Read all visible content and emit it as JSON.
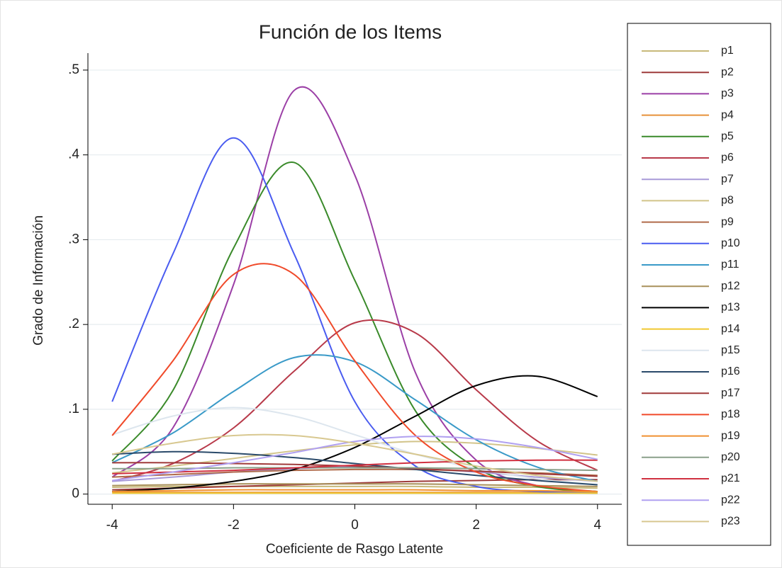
{
  "chart_data": {
    "type": "line",
    "title": "Función de los Items",
    "x_label": "Coeficiente de Rasgo Latente",
    "y_label": "Grado de Información",
    "x": [
      -4,
      -3,
      -2,
      -1,
      0,
      1,
      2,
      3,
      4
    ],
    "xlim": [
      -4.4,
      4.4
    ],
    "ylim": [
      -0.012,
      0.52
    ],
    "xticks": [
      -4,
      -2,
      0,
      2,
      4
    ],
    "yticks": [
      0,
      {
        "value": 0.1,
        "label": ".1"
      },
      {
        "value": 0.2,
        "label": ".2"
      },
      {
        "value": 0.3,
        "label": ".3"
      },
      {
        "value": 0.4,
        "label": ".4"
      },
      {
        "value": 0.5,
        "label": ".5"
      }
    ],
    "grid": true,
    "legend": "right",
    "series": [
      {
        "name": "p1",
        "color": "#c8b97a",
        "values": [
          0.008,
          0.009,
          0.009,
          0.009,
          0.009,
          0.009,
          0.008,
          0.008,
          0.007
        ]
      },
      {
        "name": "p2",
        "color": "#9e3a3a",
        "values": [
          0.005,
          0.007,
          0.009,
          0.011,
          0.013,
          0.015,
          0.016,
          0.017,
          0.017
        ]
      },
      {
        "name": "p3",
        "color": "#9b3fa6",
        "values": [
          0.02,
          0.078,
          0.247,
          0.476,
          0.376,
          0.143,
          0.04,
          0.01,
          0.003
        ]
      },
      {
        "name": "p4",
        "color": "#e8923a",
        "values": [
          0.002,
          0.002,
          0.002,
          0.002,
          0.002,
          0.002,
          0.002,
          0.002,
          0.002
        ]
      },
      {
        "name": "p5",
        "color": "#3a8a2a",
        "values": [
          0.039,
          0.122,
          0.29,
          0.391,
          0.252,
          0.098,
          0.031,
          0.009,
          0.003
        ]
      },
      {
        "name": "p6",
        "color": "#b83a4a",
        "values": [
          0.015,
          0.036,
          0.078,
          0.145,
          0.202,
          0.19,
          0.123,
          0.063,
          0.028
        ]
      },
      {
        "name": "p7",
        "color": "#a89ad8",
        "values": [
          0.015,
          0.02,
          0.026,
          0.03,
          0.032,
          0.03,
          0.026,
          0.02,
          0.015
        ]
      },
      {
        "name": "p8",
        "color": "#d2c48a",
        "values": [
          0.025,
          0.033,
          0.042,
          0.051,
          0.058,
          0.062,
          0.06,
          0.054,
          0.046
        ]
      },
      {
        "name": "p9",
        "color": "#b06a4a",
        "values": [
          0.02,
          0.023,
          0.026,
          0.028,
          0.029,
          0.029,
          0.027,
          0.025,
          0.022
        ]
      },
      {
        "name": "p10",
        "color": "#4a5cf0",
        "values": [
          0.109,
          0.283,
          0.42,
          0.283,
          0.109,
          0.033,
          0.009,
          0.003,
          0.001
        ]
      },
      {
        "name": "p11",
        "color": "#3a9ac8",
        "values": [
          0.037,
          0.072,
          0.121,
          0.161,
          0.156,
          0.111,
          0.064,
          0.032,
          0.015
        ]
      },
      {
        "name": "p12",
        "color": "#a8905a",
        "values": [
          0.01,
          0.011,
          0.012,
          0.012,
          0.012,
          0.012,
          0.011,
          0.01,
          0.009
        ]
      },
      {
        "name": "p13",
        "color": "#000000",
        "values": [
          0.003,
          0.007,
          0.015,
          0.029,
          0.055,
          0.092,
          0.128,
          0.139,
          0.115
        ]
      },
      {
        "name": "p14",
        "color": "#f0c830",
        "values": [
          0.001,
          0.001,
          0.001,
          0.001,
          0.001,
          0.001,
          0.001,
          0.001,
          0.001
        ]
      },
      {
        "name": "p15",
        "color": "#dde6ee",
        "values": [
          0.07,
          0.092,
          0.102,
          0.092,
          0.07,
          0.047,
          0.03,
          0.018,
          0.011
        ]
      },
      {
        "name": "p16",
        "color": "#2a4a6a",
        "values": [
          0.047,
          0.05,
          0.048,
          0.043,
          0.036,
          0.029,
          0.022,
          0.016,
          0.011
        ]
      },
      {
        "name": "p17",
        "color": "#a03a3a",
        "values": [
          0.037,
          0.037,
          0.036,
          0.035,
          0.033,
          0.03,
          0.027,
          0.024,
          0.021
        ]
      },
      {
        "name": "p18",
        "color": "#f04a2a",
        "values": [
          0.069,
          0.157,
          0.259,
          0.259,
          0.157,
          0.069,
          0.026,
          0.01,
          0.003
        ]
      },
      {
        "name": "p19",
        "color": "#f09030",
        "values": [
          0.003,
          0.004,
          0.005,
          0.005,
          0.005,
          0.005,
          0.004,
          0.004,
          0.003
        ]
      },
      {
        "name": "p20",
        "color": "#8aa08a",
        "values": [
          0.03,
          0.03,
          0.031,
          0.031,
          0.031,
          0.031,
          0.03,
          0.029,
          0.028
        ]
      },
      {
        "name": "p21",
        "color": "#d03040",
        "values": [
          0.024,
          0.026,
          0.028,
          0.031,
          0.034,
          0.037,
          0.039,
          0.04,
          0.04
        ]
      },
      {
        "name": "p22",
        "color": "#b0a0f0",
        "values": [
          0.016,
          0.026,
          0.037,
          0.049,
          0.062,
          0.068,
          0.065,
          0.055,
          0.041
        ]
      },
      {
        "name": "p23",
        "color": "#d8c890",
        "values": [
          0.047,
          0.06,
          0.069,
          0.069,
          0.06,
          0.047,
          0.033,
          0.022,
          0.015
        ]
      }
    ]
  }
}
